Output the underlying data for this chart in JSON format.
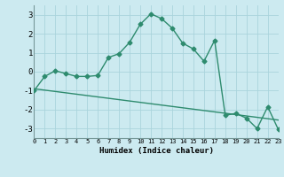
{
  "line1_x": [
    0,
    1,
    2,
    3,
    4,
    5,
    6,
    7,
    8,
    9,
    10,
    11,
    12,
    13,
    14,
    15,
    16,
    17,
    18,
    19,
    20,
    21,
    22,
    23
  ],
  "line1_y": [
    -1.0,
    -0.25,
    0.05,
    -0.1,
    -0.25,
    -0.25,
    -0.2,
    0.75,
    0.95,
    1.55,
    2.5,
    3.05,
    2.8,
    2.3,
    1.5,
    1.2,
    0.55,
    1.65,
    -2.3,
    -2.2,
    -2.45,
    -3.0,
    -1.85,
    -3.05
  ],
  "line2_x": [
    0,
    23
  ],
  "line2_y": [
    -0.9,
    -2.55
  ],
  "line_color": "#2e8b6e",
  "bg_color": "#cceaf0",
  "grid_major_color": "#aad4dc",
  "grid_minor_color": "#bbdde6",
  "xlabel": "Humidex (Indice chaleur)",
  "xlim": [
    0,
    23
  ],
  "ylim": [
    -3.5,
    3.5
  ],
  "yticks": [
    -3,
    -2,
    -1,
    0,
    1,
    2,
    3
  ],
  "xticks": [
    0,
    1,
    2,
    3,
    4,
    5,
    6,
    7,
    8,
    9,
    10,
    11,
    12,
    13,
    14,
    15,
    16,
    17,
    18,
    19,
    20,
    21,
    22,
    23
  ],
  "xtick_labels": [
    "0",
    "1",
    "2",
    "3",
    "4",
    "5",
    "6",
    "7",
    "8",
    "9",
    "10",
    "11",
    "12",
    "13",
    "14",
    "15",
    "16",
    "17",
    "18",
    "19",
    "20",
    "21",
    "22",
    "23"
  ],
  "marker": "D",
  "marker_size": 2.5,
  "line_width": 1.0
}
